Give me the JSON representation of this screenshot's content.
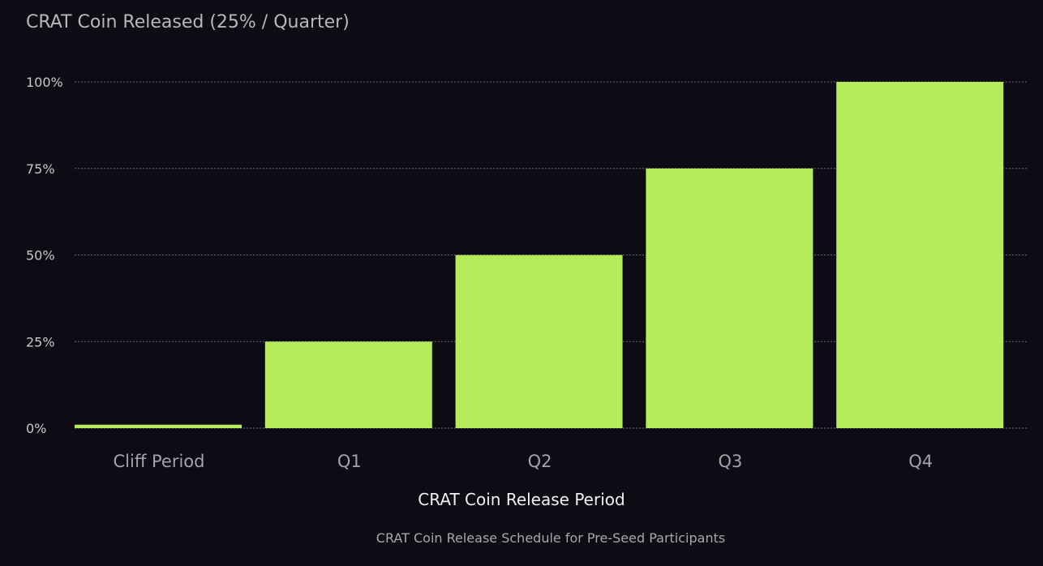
{
  "chart_data": {
    "type": "bar",
    "title": "CRAT Coin Released (25% / Quarter)",
    "xlabel": "CRAT Coin Release Period",
    "ylabel": "",
    "caption": "CRAT Coin Release Schedule for Pre-Seed Participants",
    "categories": [
      "Cliff Period",
      "Q1",
      "Q2",
      "Q3",
      "Q4"
    ],
    "values": [
      1,
      25,
      50,
      75,
      100
    ],
    "ylim": [
      0,
      100
    ],
    "yticks": [
      {
        "value": 0,
        "label": "0%"
      },
      {
        "value": 25,
        "label": "25%"
      },
      {
        "value": 50,
        "label": "50%"
      },
      {
        "value": 75,
        "label": "75%"
      },
      {
        "value": 100,
        "label": "100%"
      }
    ],
    "grid": true,
    "legend": "none",
    "colors": {
      "background": "#0f0b14",
      "bar": "#b6eb5a",
      "grid": "#6a6770"
    }
  }
}
